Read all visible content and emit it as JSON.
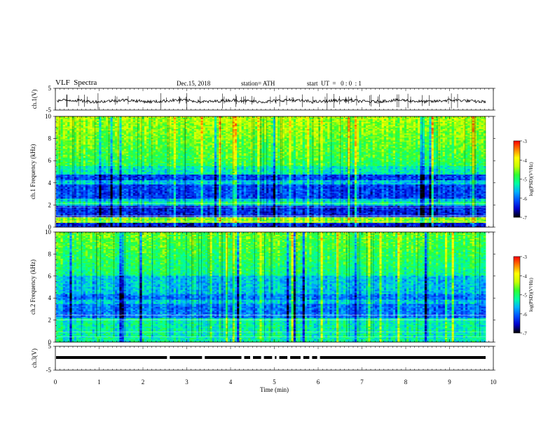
{
  "header": {
    "title": "VLF  Spectra",
    "date": "Dec.15, 2018",
    "station": "station= ATH",
    "start_ut": "start  UT  =   0 : 0  : 1"
  },
  "chart_data": [
    {
      "type": "line",
      "panel": "ch1-waveform",
      "ylabel": "ch.1(V)",
      "y_ticks": [
        "5",
        "-5"
      ],
      "ylim": [
        -5,
        5
      ],
      "xlim": [
        0,
        10
      ],
      "baseline": 0,
      "color": "#000000"
    },
    {
      "type": "heatmap",
      "panel": "ch1-spectrogram",
      "ylabel": "ch.1  Frequency (kHz)",
      "y_ticks": [
        "0",
        "2",
        "4",
        "6",
        "8",
        "10"
      ],
      "ylim": [
        0,
        10
      ],
      "xlim": [
        0,
        9.83
      ],
      "colorbar": {
        "label": "log(PSD)(V²/Hz)",
        "ticks": [
          "-3",
          "-4",
          "-5",
          "-6",
          "-7"
        ],
        "range": [
          -7,
          -3
        ]
      }
    },
    {
      "type": "heatmap",
      "panel": "ch2-spectrogram",
      "ylabel": "ch.2  Frequency (kHz)",
      "y_ticks": [
        "0",
        "2",
        "4",
        "6",
        "8",
        "10"
      ],
      "ylim": [
        0,
        10
      ],
      "xlim": [
        0,
        9.83
      ],
      "colorbar": {
        "label": "log(PSD)(V²/Hz)",
        "ticks": [
          "-3",
          "-4",
          "-5",
          "-6",
          "-7"
        ],
        "range": [
          -7,
          -3
        ]
      }
    },
    {
      "type": "line",
      "panel": "ch3-waveform",
      "ylabel": "ch.3(V)",
      "y_ticks": [
        "5",
        "-5"
      ],
      "ylim": [
        -5,
        5
      ],
      "xlim": [
        0,
        10
      ],
      "level": 0,
      "gaps_min": [
        2.58,
        3.38,
        4.28,
        4.48,
        4.73,
        4.98,
        5.08,
        5.33,
        5.63,
        5.83,
        6.01
      ],
      "color": "#000000"
    }
  ],
  "x_axis": {
    "label": "Time  (min)",
    "ticks": [
      "0",
      "1",
      "2",
      "3",
      "4",
      "5",
      "6",
      "7",
      "8",
      "9",
      "10"
    ],
    "range": [
      0,
      10
    ]
  },
  "colors": {
    "colormap": [
      "#000000",
      "#0000cc",
      "#0050ff",
      "#00b0ff",
      "#00ffa0",
      "#30ff30",
      "#c8ff00",
      "#ffff00",
      "#ff8000",
      "#ff0000",
      "#ffffff"
    ],
    "waveform": "#000000"
  }
}
